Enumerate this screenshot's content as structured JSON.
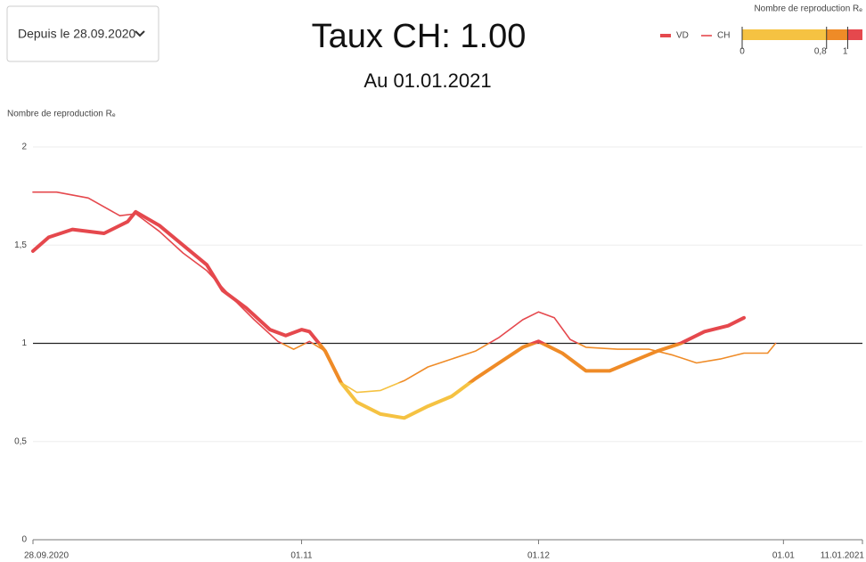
{
  "filter": {
    "label": "Depuis le 28.09.2020"
  },
  "chart_data": {
    "type": "line",
    "title": "Taux CH: 1.00",
    "subtitle": "Au 01.01.2021",
    "y_label": "Nombre de reproduction Rₑ",
    "xlim": [
      "2020-09-28",
      "2021-01-11"
    ],
    "xticks": [
      {
        "value": "2020-09-28",
        "label": "28.09.2020"
      },
      {
        "value": "2020-11-01",
        "label": "01.11"
      },
      {
        "value": "2020-12-01",
        "label": "01.12"
      },
      {
        "value": "2021-01-01",
        "label": "01.01"
      },
      {
        "value": "2021-01-11",
        "label": "11.01.2021"
      }
    ],
    "ylim": [
      0,
      2
    ],
    "yticks": [
      0,
      {
        "value": 0.5,
        "label": "0,5"
      },
      1,
      {
        "value": 1.5,
        "label": "1,5"
      },
      2
    ],
    "grid": true,
    "reference_line": 1,
    "color_scale": {
      "title": "Nombre de reproduction Rₑ",
      "lim": [
        0,
        1.14
      ],
      "ticks": [
        0,
        {
          "value": 0.8,
          "label": "0,8"
        },
        1
      ],
      "colors": [
        "#f5c242",
        "#ef8b27",
        "#e5484d"
      ]
    },
    "series": [
      {
        "name": "VD",
        "color": "#e5484d",
        "line_width": 4,
        "x": [
          "2020-09-28",
          "2020-09-30",
          "2020-10-03",
          "2020-10-07",
          "2020-10-10",
          "2020-10-11",
          "2020-10-14",
          "2020-10-17",
          "2020-10-20",
          "2020-10-22",
          "2020-10-25",
          "2020-10-28",
          "2020-10-30",
          "2020-11-01",
          "2020-11-02",
          "2020-11-04",
          "2020-11-06",
          "2020-11-08",
          "2020-11-11",
          "2020-11-14",
          "2020-11-17",
          "2020-11-20",
          "2020-11-23",
          "2020-11-26",
          "2020-11-29",
          "2020-12-01",
          "2020-12-04",
          "2020-12-07",
          "2020-12-10",
          "2020-12-13",
          "2020-12-16",
          "2020-12-19",
          "2020-12-22",
          "2020-12-25",
          "2020-12-27"
        ],
        "values": [
          1.47,
          1.54,
          1.58,
          1.56,
          1.62,
          1.67,
          1.6,
          1.5,
          1.4,
          1.27,
          1.18,
          1.07,
          1.04,
          1.07,
          1.06,
          0.96,
          0.8,
          0.7,
          0.64,
          0.62,
          0.68,
          0.73,
          0.82,
          0.9,
          0.98,
          1.01,
          0.95,
          0.86,
          0.86,
          0.91,
          0.96,
          1.0,
          1.06,
          1.09,
          1.13
        ]
      },
      {
        "name": "CH",
        "color": "#e5484d",
        "line_width": 1.6,
        "x": [
          "2020-09-28",
          "2020-10-01",
          "2020-10-05",
          "2020-10-09",
          "2020-10-11",
          "2020-10-14",
          "2020-10-17",
          "2020-10-20",
          "2020-10-23",
          "2020-10-26",
          "2020-10-29",
          "2020-10-31",
          "2020-11-02",
          "2020-11-04",
          "2020-11-06",
          "2020-11-08",
          "2020-11-11",
          "2020-11-14",
          "2020-11-17",
          "2020-11-20",
          "2020-11-23",
          "2020-11-26",
          "2020-11-29",
          "2020-12-01",
          "2020-12-03",
          "2020-12-05",
          "2020-12-07",
          "2020-12-11",
          "2020-12-15",
          "2020-12-18",
          "2020-12-21",
          "2020-12-24",
          "2020-12-27",
          "2020-12-30",
          "2020-12-31"
        ],
        "values": [
          1.77,
          1.77,
          1.74,
          1.65,
          1.66,
          1.57,
          1.46,
          1.37,
          1.24,
          1.12,
          1.01,
          0.97,
          1.01,
          0.96,
          0.8,
          0.75,
          0.76,
          0.81,
          0.88,
          0.92,
          0.96,
          1.03,
          1.12,
          1.16,
          1.13,
          1.02,
          0.98,
          0.97,
          0.97,
          0.94,
          0.9,
          0.92,
          0.95,
          0.95,
          1.0
        ]
      }
    ]
  }
}
